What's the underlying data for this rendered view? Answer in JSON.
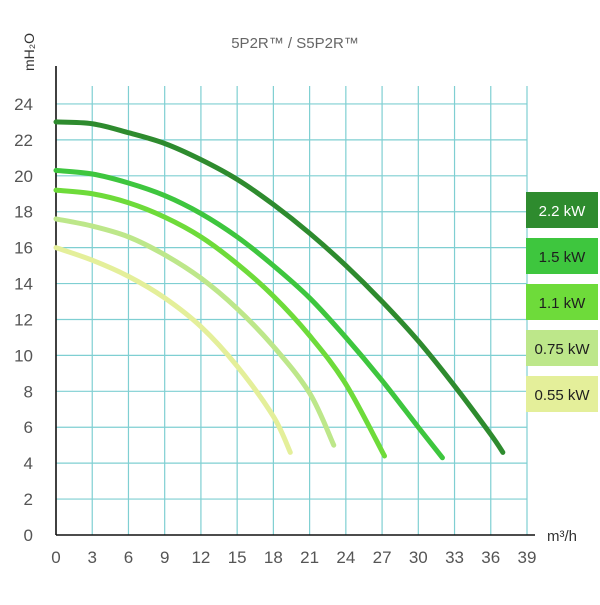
{
  "chart_data": {
    "type": "line",
    "title": "5P2R™ / S5P2R™",
    "xlabel": "m³/h",
    "ylabel": "mH₂O",
    "xlim": [
      0,
      39
    ],
    "ylim": [
      0,
      25
    ],
    "x_ticks": [
      0,
      3,
      6,
      9,
      12,
      15,
      18,
      21,
      24,
      27,
      30,
      33,
      36,
      39
    ],
    "y_ticks": [
      0,
      2,
      4,
      6,
      8,
      10,
      12,
      14,
      16,
      18,
      20,
      22,
      24
    ],
    "grid": {
      "vertical": true,
      "horizontal": true,
      "color": "#7fcfd2"
    },
    "axis_color": "#111111",
    "tick_label_color": "#555555",
    "legend_position": "right",
    "series": [
      {
        "name": "2.2 kW",
        "color": "#2e8b2e",
        "x": [
          0,
          3,
          6,
          9,
          12,
          15,
          18,
          21,
          24,
          27,
          30,
          33,
          36,
          37
        ],
        "y": [
          23,
          22.9,
          22.4,
          21.8,
          20.9,
          19.8,
          18.4,
          16.8,
          15.0,
          13.0,
          10.8,
          8.3,
          5.6,
          4.6
        ]
      },
      {
        "name": "1.5 kW",
        "color": "#3ec63e",
        "x": [
          0,
          3,
          6,
          9,
          12,
          15,
          18,
          21,
          24,
          27,
          30,
          32
        ],
        "y": [
          20.3,
          20.1,
          19.6,
          18.9,
          17.9,
          16.6,
          15.0,
          13.2,
          11.0,
          8.6,
          6.0,
          4.3
        ]
      },
      {
        "name": "1.1 kW",
        "color": "#6edb3a",
        "x": [
          0,
          3,
          6,
          9,
          12,
          15,
          18,
          21,
          24,
          27.2
        ],
        "y": [
          19.2,
          19.0,
          18.5,
          17.7,
          16.6,
          15.1,
          13.3,
          11.1,
          8.4,
          4.4
        ]
      },
      {
        "name": "0.75 kW",
        "color": "#bde78a",
        "x": [
          0,
          3,
          6,
          9,
          12,
          15,
          18,
          21,
          23
        ],
        "y": [
          17.6,
          17.2,
          16.6,
          15.6,
          14.3,
          12.6,
          10.5,
          7.9,
          5.0
        ]
      },
      {
        "name": "0.55 kW",
        "color": "#e4ef9a",
        "x": [
          0,
          3,
          6,
          9,
          12,
          15,
          18,
          19.4
        ],
        "y": [
          16.0,
          15.3,
          14.4,
          13.2,
          11.6,
          9.4,
          6.6,
          4.6
        ]
      }
    ]
  }
}
